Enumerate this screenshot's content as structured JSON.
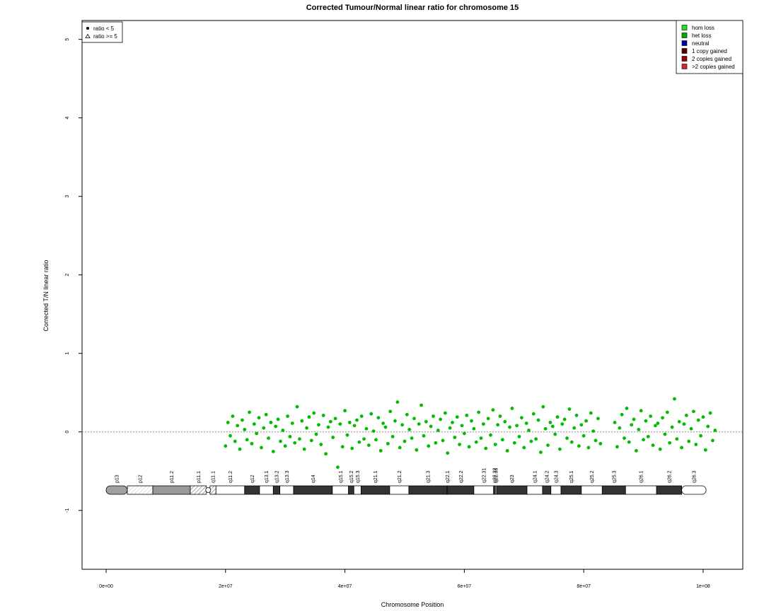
{
  "chart_data": {
    "type": "scatter",
    "title": "Corrected Tumour/Normal linear ratio for chromosome  15",
    "xlabel": "Chromosome Position",
    "ylabel": "Corrected T/N linear ratio",
    "xlim": [
      -4030000,
      106640000
    ],
    "ylim": [
      -1.75,
      5.24
    ],
    "xticks": [
      {
        "value": 0,
        "label": "0e+00"
      },
      {
        "value": 20000000,
        "label": "2e+07"
      },
      {
        "value": 40000000,
        "label": "4e+07"
      },
      {
        "value": 60000000,
        "label": "6e+07"
      },
      {
        "value": 80000000,
        "label": "8e+07"
      },
      {
        "value": 100000000,
        "label": "1e+08"
      }
    ],
    "yticks": [
      -1,
      0,
      1,
      2,
      3,
      4,
      5
    ],
    "hline": 0,
    "series": [
      {
        "color": "#00bb00",
        "x": [
          20000000,
          20400000,
          20800000,
          21200000,
          21600000,
          22000000,
          22400000,
          22800000,
          23200000,
          23600000,
          24000000,
          24400000,
          24800000,
          25200000,
          25600000,
          26000000,
          26400000,
          26800000,
          27200000,
          27600000,
          28000000,
          28400000,
          28800000,
          29200000,
          29600000,
          30000000,
          30400000,
          30800000,
          31200000,
          31600000,
          32000000,
          32400000,
          32800000,
          33200000,
          33600000,
          34000000,
          34400000,
          34800000,
          35200000,
          35600000,
          36000000,
          36400000,
          36800000,
          37200000,
          37600000,
          38000000,
          38400000,
          38800000,
          39200000,
          39600000,
          40000000,
          40400000,
          40800000,
          41200000,
          41600000,
          42000000,
          42400000,
          42800000,
          43200000,
          43600000,
          44000000,
          44400000,
          44800000,
          45200000,
          45600000,
          46000000,
          46400000,
          46800000,
          47200000,
          47600000,
          48000000,
          48400000,
          48800000,
          49200000,
          49600000,
          50000000,
          50400000,
          50800000,
          51200000,
          51600000,
          52000000,
          52400000,
          52800000,
          53200000,
          53600000,
          54000000,
          54400000,
          54800000,
          55200000,
          55600000,
          56000000,
          56400000,
          56800000,
          57200000,
          57600000,
          58000000,
          58400000,
          58800000,
          59200000,
          59600000,
          60000000,
          60400000,
          60800000,
          61200000,
          61600000,
          62000000,
          62400000,
          62800000,
          63200000,
          63600000,
          64000000,
          64400000,
          64800000,
          65200000,
          65600000,
          66000000,
          66400000,
          66800000,
          67200000,
          67600000,
          68000000,
          68400000,
          68800000,
          69200000,
          69600000,
          70000000,
          70400000,
          70800000,
          71200000,
          71600000,
          72000000,
          72400000,
          72800000,
          73200000,
          73600000,
          74000000,
          74400000,
          74800000,
          75200000,
          75600000,
          76000000,
          76400000,
          76800000,
          77200000,
          77600000,
          78000000,
          78400000,
          78800000,
          79200000,
          79600000,
          80000000,
          80400000,
          80800000,
          81200000,
          81600000,
          82000000,
          82400000,
          82800000,
          85200000,
          85600000,
          86000000,
          86400000,
          86800000,
          87200000,
          87600000,
          88000000,
          88400000,
          88800000,
          89200000,
          89600000,
          90000000,
          90400000,
          90800000,
          91200000,
          91600000,
          92000000,
          92400000,
          92800000,
          93200000,
          93600000,
          94000000,
          94400000,
          94800000,
          95200000,
          95600000,
          96000000,
          96400000,
          96800000,
          97200000,
          97600000,
          98000000,
          98400000,
          98800000,
          99200000,
          99600000,
          100000000,
          100400000,
          100800000,
          101200000,
          101600000,
          102000000
        ],
        "values": [
          -0.18,
          0.12,
          -0.05,
          0.2,
          -0.12,
          0.08,
          -0.22,
          0.15,
          0.03,
          -0.1,
          0.25,
          -0.15,
          0.1,
          -0.02,
          0.18,
          -0.2,
          0.05,
          0.22,
          -0.08,
          0.12,
          -0.25,
          0.07,
          0.16,
          -0.12,
          0.02,
          -0.18,
          0.2,
          -0.06,
          0.11,
          -0.14,
          0.32,
          -0.09,
          0.14,
          -0.22,
          0.05,
          0.19,
          -0.11,
          0.24,
          -0.03,
          0.09,
          -0.16,
          0.21,
          -0.28,
          0.06,
          0.13,
          -0.07,
          0.17,
          -0.45,
          0.1,
          -0.19,
          0.27,
          -0.04,
          0.12,
          -0.21,
          0.08,
          0.15,
          -0.13,
          0.2,
          -0.09,
          0.04,
          -0.17,
          0.23,
          0.01,
          -0.1,
          0.18,
          -0.24,
          0.11,
          0.06,
          -0.15,
          0.26,
          -0.06,
          0.14,
          0.38,
          -0.2,
          0.09,
          -0.12,
          0.22,
          0.03,
          -0.08,
          0.17,
          -0.23,
          0.1,
          0.34,
          -0.05,
          0.13,
          -0.18,
          0.07,
          0.2,
          -0.14,
          0.02,
          0.16,
          -0.11,
          0.24,
          -0.27,
          0.05,
          0.12,
          -0.07,
          0.19,
          -0.16,
          0.08,
          -0.02,
          0.21,
          -0.19,
          0.14,
          0.04,
          -0.13,
          0.25,
          -0.08,
          0.1,
          -0.21,
          0.17,
          -0.04,
          0.28,
          -0.16,
          0.09,
          0.2,
          -0.1,
          0.13,
          -0.24,
          0.06,
          0.3,
          -0.14,
          0.08,
          -0.06,
          0.18,
          -0.2,
          0.11,
          0.02,
          -0.12,
          0.23,
          -0.09,
          0.15,
          -0.26,
          0.32,
          0.04,
          -0.17,
          0.12,
          0.07,
          -0.03,
          0.19,
          -0.22,
          0.1,
          0.16,
          -0.08,
          0.29,
          -0.13,
          0.05,
          0.21,
          -0.18,
          0.09,
          -0.05,
          0.14,
          -0.2,
          0.24,
          0.01,
          -0.11,
          0.17,
          -0.15,
          0.12,
          -0.19,
          0.05,
          0.22,
          -0.08,
          0.3,
          -0.13,
          0.09,
          0.16,
          -0.24,
          0.03,
          0.27,
          -0.1,
          0.14,
          -0.06,
          0.2,
          -0.17,
          0.08,
          0.11,
          -0.22,
          0.18,
          -0.03,
          0.25,
          -0.14,
          0.06,
          0.42,
          -0.09,
          0.13,
          -0.2,
          0.1,
          0.21,
          -0.12,
          0.04,
          0.26,
          -0.16,
          0.15,
          -0.05,
          0.19,
          -0.23,
          0.07,
          0.24,
          -0.11,
          0.02
        ]
      }
    ],
    "symbol_legend": [
      "ratio < 5",
      "ratio >= 5"
    ],
    "legend": [
      {
        "label": "hom loss",
        "color": "#22dd22"
      },
      {
        "label": "het loss",
        "color": "#00aa00"
      },
      {
        "label": "neutral",
        "color": "#0000aa"
      },
      {
        "label": "1 copy gained",
        "color": "#550000"
      },
      {
        "label": "2 copies gained",
        "color": "#990000"
      },
      {
        "label": ">2 copies gained",
        "color": "#dd2222"
      }
    ],
    "bands": [
      {
        "name": "p13",
        "start": 0,
        "end": 3550000,
        "color": "#a0a0a0"
      },
      {
        "name": "p12",
        "start": 3550000,
        "end": 7820000,
        "color": "#ffffff",
        "hatch": true
      },
      {
        "name": "p11.2",
        "start": 7820000,
        "end": 14100000,
        "color": "#999999"
      },
      {
        "name": "p11.1",
        "start": 14100000,
        "end": 16800000,
        "color": "#ffffff",
        "hatch": true
      },
      {
        "name": "q11.1",
        "start": 17400000,
        "end": 18400000,
        "color": "#ffffff",
        "hatch": true
      },
      {
        "name": "q11.2",
        "start": 18400000,
        "end": 23200000,
        "color": "#ffffff"
      },
      {
        "name": "q12",
        "start": 23200000,
        "end": 25700000,
        "color": "#333333"
      },
      {
        "name": "q13.1",
        "start": 25700000,
        "end": 28000000,
        "color": "#ffffff"
      },
      {
        "name": "q13.2",
        "start": 28000000,
        "end": 29100000,
        "color": "#333333"
      },
      {
        "name": "q13.3",
        "start": 29100000,
        "end": 31400000,
        "color": "#ffffff"
      },
      {
        "name": "q14",
        "start": 31400000,
        "end": 37900000,
        "color": "#333333"
      },
      {
        "name": "q15.1",
        "start": 37900000,
        "end": 40600000,
        "color": "#ffffff"
      },
      {
        "name": "q15.2",
        "start": 40600000,
        "end": 41500000,
        "color": "#333333"
      },
      {
        "name": "q15.3",
        "start": 41500000,
        "end": 42700000,
        "color": "#ffffff"
      },
      {
        "name": "q21.1",
        "start": 42700000,
        "end": 47500000,
        "color": "#333333"
      },
      {
        "name": "q21.2",
        "start": 47500000,
        "end": 50700000,
        "color": "#ffffff"
      },
      {
        "name": "q21.3",
        "start": 50700000,
        "end": 57100000,
        "color": "#333333"
      },
      {
        "name": "q22.1",
        "start": 57100000,
        "end": 57200000,
        "color": "#ffffff"
      },
      {
        "name": "q22.2",
        "start": 57200000,
        "end": 61600000,
        "color": "#333333"
      },
      {
        "name": "q22.31",
        "start": 61600000,
        "end": 64900000,
        "color": "#ffffff"
      },
      {
        "name": "q22.32",
        "start": 64900000,
        "end": 65200000,
        "color": "#333333"
      },
      {
        "name": "q22.33",
        "start": 65200000,
        "end": 65400000,
        "color": "#ffffff"
      },
      {
        "name": "q23",
        "start": 65400000,
        "end": 70500000,
        "color": "#333333"
      },
      {
        "name": "q24.1",
        "start": 70500000,
        "end": 73100000,
        "color": "#ffffff"
      },
      {
        "name": "q24.2",
        "start": 73100000,
        "end": 74500000,
        "color": "#333333"
      },
      {
        "name": "q24.3",
        "start": 74500000,
        "end": 76200000,
        "color": "#ffffff"
      },
      {
        "name": "q25.1",
        "start": 76200000,
        "end": 79600000,
        "color": "#333333"
      },
      {
        "name": "q25.2",
        "start": 79600000,
        "end": 83100000,
        "color": "#ffffff"
      },
      {
        "name": "q25.3",
        "start": 83100000,
        "end": 87000000,
        "color": "#333333"
      },
      {
        "name": "q26.1",
        "start": 87000000,
        "end": 92200000,
        "color": "#ffffff"
      },
      {
        "name": "q26.2",
        "start": 92200000,
        "end": 96400000,
        "color": "#333333"
      },
      {
        "name": "q26.3",
        "start": 96400000,
        "end": 100500000,
        "color": "#ffffff"
      }
    ]
  }
}
